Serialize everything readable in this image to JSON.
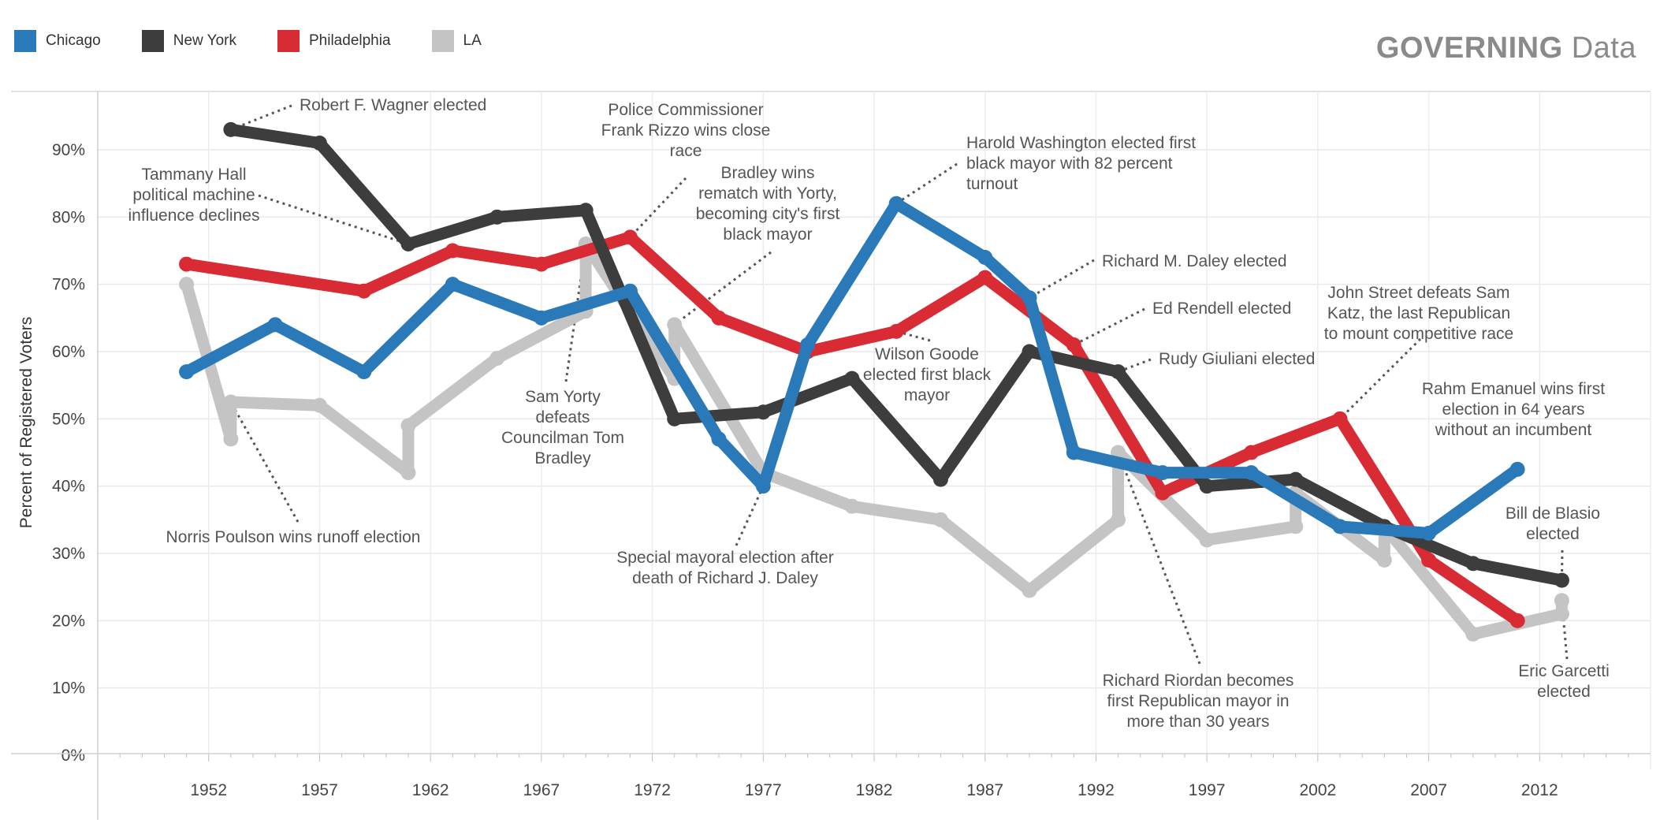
{
  "brand": {
    "bold": "GOVERNING",
    "light": "Data"
  },
  "legend": [
    {
      "name": "Chicago",
      "color": "#2a7ab9"
    },
    {
      "name": "New York",
      "color": "#3d3d3d"
    },
    {
      "name": "Philadelphia",
      "color": "#d92b34"
    },
    {
      "name": "LA",
      "color": "#c4c4c4"
    }
  ],
  "chart_data": {
    "type": "line",
    "title": "",
    "xlabel": "",
    "ylabel": "Percent of Registered Voters",
    "xlim": [
      1947,
      2017
    ],
    "ylim": [
      0,
      100
    ],
    "x_ticks": [
      1952,
      1957,
      1962,
      1967,
      1972,
      1977,
      1982,
      1987,
      1992,
      1997,
      2002,
      2007,
      2012
    ],
    "y_ticks": [
      0,
      10,
      20,
      30,
      40,
      50,
      60,
      70,
      80,
      90
    ],
    "y_tick_labels": [
      "0%",
      "10%",
      "20%",
      "30%",
      "40%",
      "50%",
      "60%",
      "70%",
      "80%",
      "90%"
    ],
    "grid": true,
    "legend_position": "top-left",
    "series": [
      {
        "name": "LA",
        "color": "#c4c4c4",
        "points": [
          [
            1951,
            70
          ],
          [
            1953,
            47
          ],
          [
            1953,
            52.5
          ],
          [
            1957,
            52
          ],
          [
            1961,
            42
          ],
          [
            1961,
            49
          ],
          [
            1965,
            59
          ],
          [
            1969,
            66
          ],
          [
            1969,
            76
          ],
          [
            1973,
            56
          ],
          [
            1973,
            64
          ],
          [
            1977,
            42
          ],
          [
            1981,
            37
          ],
          [
            1985,
            35
          ],
          [
            1989,
            24.5
          ],
          [
            1993,
            35
          ],
          [
            1993,
            45
          ],
          [
            1997,
            32
          ],
          [
            2001,
            34
          ],
          [
            2001,
            39
          ],
          [
            2005,
            29
          ],
          [
            2005,
            34
          ],
          [
            2009,
            18
          ],
          [
            2013,
            21
          ],
          [
            2013,
            23
          ]
        ]
      },
      {
        "name": "Philadelphia",
        "color": "#d92b34",
        "points": [
          [
            1951,
            73
          ],
          [
            1959,
            69
          ],
          [
            1963,
            75
          ],
          [
            1967,
            73
          ],
          [
            1971,
            77
          ],
          [
            1975,
            65
          ],
          [
            1979,
            60
          ],
          [
            1983,
            63
          ],
          [
            1987,
            71
          ],
          [
            1991,
            61
          ],
          [
            1995,
            39
          ],
          [
            1999,
            45
          ],
          [
            2003,
            50
          ],
          [
            2007,
            29
          ],
          [
            2011,
            20
          ]
        ]
      },
      {
        "name": "New York",
        "color": "#3d3d3d",
        "points": [
          [
            1953,
            93
          ],
          [
            1957,
            91
          ],
          [
            1961,
            76
          ],
          [
            1965,
            80
          ],
          [
            1969,
            81
          ],
          [
            1973,
            50
          ],
          [
            1977,
            51
          ],
          [
            1981,
            56
          ],
          [
            1985,
            41
          ],
          [
            1989,
            60
          ],
          [
            1993,
            57
          ],
          [
            1997,
            40
          ],
          [
            2001,
            41
          ],
          [
            2005,
            34
          ],
          [
            2009,
            28.5
          ],
          [
            2013,
            26
          ]
        ]
      },
      {
        "name": "Chicago",
        "color": "#2a7ab9",
        "points": [
          [
            1951,
            57
          ],
          [
            1955,
            64
          ],
          [
            1959,
            57
          ],
          [
            1963,
            70
          ],
          [
            1967,
            65
          ],
          [
            1971,
            69
          ],
          [
            1975,
            47
          ],
          [
            1977,
            40
          ],
          [
            1979,
            61
          ],
          [
            1983,
            82
          ],
          [
            1987,
            74
          ],
          [
            1989,
            68
          ],
          [
            1991,
            45
          ],
          [
            1995,
            42
          ],
          [
            1999,
            42
          ],
          [
            2003,
            34
          ],
          [
            2007,
            33
          ],
          [
            2011,
            42.5
          ]
        ]
      }
    ],
    "annotations": [
      {
        "lines": [
          "Robert F. Wagner elected"
        ],
        "point": [
          1953,
          93
        ]
      },
      {
        "lines": [
          "Tammany Hall",
          "political machine",
          "influence declines"
        ],
        "point": [
          1961,
          76
        ]
      },
      {
        "lines": [
          "Police Commissioner",
          "Frank Rizzo wins close",
          "race"
        ],
        "point": [
          1971,
          77
        ]
      },
      {
        "lines": [
          "Bradley wins",
          "rematch with Yorty,",
          "becoming city's first",
          "black mayor"
        ],
        "point": [
          1973,
          64
        ]
      },
      {
        "lines": [
          "Harold Washington elected first",
          "black mayor with 82 percent",
          "turnout"
        ],
        "point": [
          1983,
          82
        ]
      },
      {
        "lines": [
          "Richard M. Daley elected"
        ],
        "point": [
          1989,
          68
        ]
      },
      {
        "lines": [
          "Ed Rendell elected"
        ],
        "point": [
          1991,
          61
        ]
      },
      {
        "lines": [
          "Rudy Giuliani elected"
        ],
        "point": [
          1993,
          57
        ]
      },
      {
        "lines": [
          "Wilson Goode",
          "elected first black",
          "mayor"
        ],
        "point": [
          1983,
          63
        ]
      },
      {
        "lines": [
          "John Street defeats Sam",
          "Katz, the last Republican",
          "to mount competitive race"
        ],
        "point": [
          2003,
          50
        ]
      },
      {
        "lines": [
          "Rahm Emanuel wins first",
          "election in 64 years",
          "without an incumbent"
        ],
        "point": [
          2011,
          42.5
        ]
      },
      {
        "lines": [
          "Bill de Blasio",
          "elected"
        ],
        "point": [
          2013,
          26
        ]
      },
      {
        "lines": [
          "Eric Garcetti",
          "elected"
        ],
        "point": [
          2013,
          23
        ]
      },
      {
        "lines": [
          "Richard Riordan becomes",
          "first Republican mayor in",
          "more than 30 years"
        ],
        "point": [
          1993,
          45
        ]
      },
      {
        "lines": [
          "Special mayoral election after",
          "death of Richard J. Daley"
        ],
        "point": [
          1977,
          40
        ]
      },
      {
        "lines": [
          "Sam Yorty",
          "defeats",
          "Councilman Tom",
          "Bradley"
        ],
        "point": [
          1969,
          76
        ]
      },
      {
        "lines": [
          "Norris Poulson wins runoff election"
        ],
        "point": [
          1953,
          52.5
        ]
      }
    ]
  }
}
